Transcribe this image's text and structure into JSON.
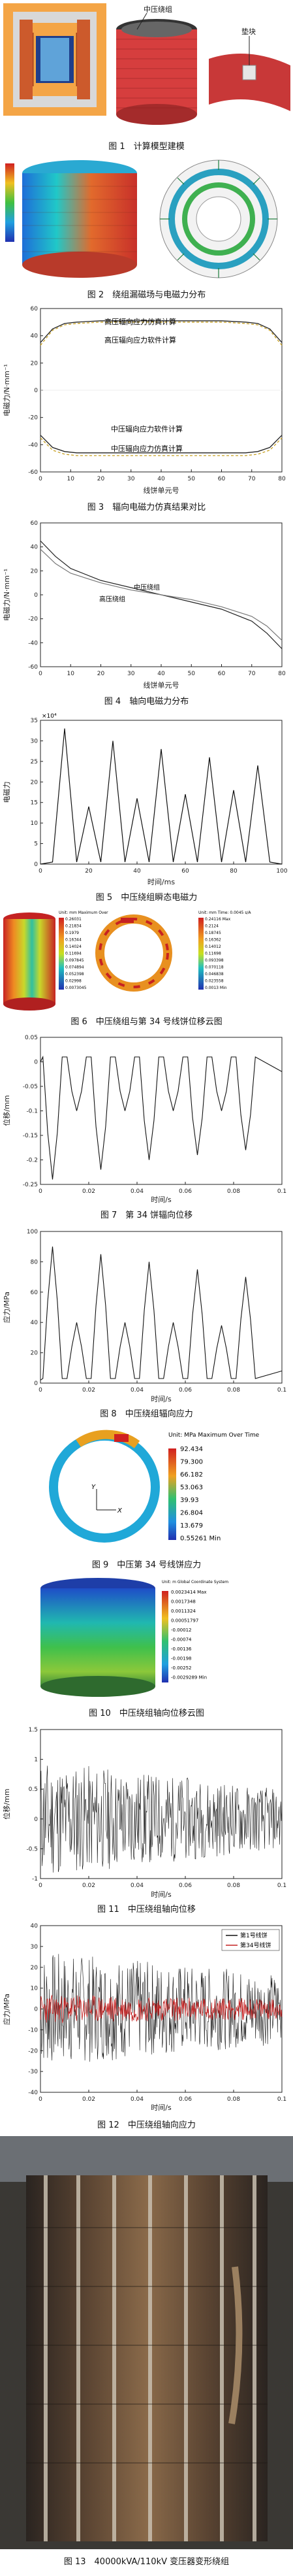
{
  "figures": {
    "fig1": {
      "caption": "图 1　计算模型建模",
      "labels": [
        "中压绕组",
        "垫块"
      ]
    },
    "fig2": {
      "caption": "图 2　绕组漏磁场与电磁力分布"
    },
    "fig3": {
      "caption": "图 3　辐向电磁力仿真结果对比"
    },
    "fig4": {
      "caption": "图 4　轴向电磁力分布"
    },
    "fig5": {
      "caption": "图 5　中压绕组瞬态电磁力"
    },
    "fig6": {
      "caption": "图 6　中压绕组与第 34 号线饼位移云图",
      "left_legend_title": "Unit: mm\nMaximum Over",
      "left_legend_values": [
        "0.26031",
        "0.21834",
        "0.1979",
        "0.16344",
        "0.14024",
        "0.11694",
        "0.097845",
        "0.074894",
        "0.052398",
        "0.02998",
        "0.0073045"
      ],
      "right_legend_title": "Unit: mm\nTime: 0.0045 s/A",
      "right_legend_values": [
        "0.24116 Max",
        "0.2124",
        "0.18745",
        "0.16362",
        "0.14012",
        "0.11698",
        "0.093398",
        "0.070118",
        "0.046838",
        "0.023558",
        "0.0013 Min"
      ]
    },
    "fig7": {
      "caption": "图 7　第 34 饼辐向位移"
    },
    "fig8": {
      "caption": "图 8　中压绕组辐向应力"
    },
    "fig9": {
      "caption": "图 9　中压第 34 号线饼应力",
      "legend_title": "Unit: MPa\nMaximum Over Time",
      "legend_values": [
        "92.434",
        "79.300",
        "66.182",
        "53.063",
        "39.93",
        "26.804",
        "13.679",
        "0.55261 Min"
      ]
    },
    "fig10": {
      "caption": "图 10　中压绕组轴向位移云图",
      "legend_title": "Unit: m\nGlobal Coordinate System",
      "legend_values": [
        "0.0023414 Max",
        "0.0017348",
        "0.0011324",
        "0.00051797",
        "-0.00012",
        "-0.00074",
        "-0.00136",
        "-0.00198",
        "-0.00252",
        "-0.0029289 Min"
      ]
    },
    "fig11": {
      "caption": "图 11　中压绕组轴向位移"
    },
    "fig12": {
      "caption": "图 12　中压绕组轴向应力",
      "legend": [
        "第1号线饼",
        "第34号线饼"
      ]
    },
    "fig13": {
      "caption": "图 13　40000kVA/110kV 变压器变形绕组"
    }
  },
  "chart_data": [
    {
      "id": "fig3",
      "type": "line",
      "xlabel": "线饼单元号",
      "ylabel": "电磁力/N·mm⁻¹",
      "xlim": [
        0,
        80
      ],
      "ylim": [
        -60,
        60
      ],
      "xticks": [
        0,
        10,
        20,
        30,
        40,
        50,
        60,
        70,
        80
      ],
      "yticks": [
        -60,
        -40,
        -20,
        0,
        20,
        40,
        60
      ],
      "annotations": [
        "高压辐向应力仿真计算",
        "高压辐向应力软件计算",
        "中压辐向应力仿真计算",
        "中压辐向应力软件计算"
      ],
      "series": [
        {
          "values_x": [
            0,
            4,
            8,
            12,
            20,
            30,
            40,
            50,
            60,
            68,
            72,
            76,
            80
          ],
          "values": [
            35,
            45,
            49,
            50,
            51,
            51,
            51,
            51,
            51,
            50,
            49,
            45,
            35
          ]
        },
        {
          "values_x": [
            0,
            4,
            8,
            12,
            20,
            30,
            40,
            50,
            60,
            68,
            72,
            76,
            80
          ],
          "values": [
            33,
            44,
            48,
            49,
            50,
            50,
            50,
            50,
            50,
            49,
            48,
            44,
            33
          ]
        },
        {
          "values_x": [
            0,
            4,
            8,
            12,
            20,
            30,
            40,
            50,
            60,
            68,
            72,
            76,
            80
          ],
          "values": [
            -33,
            -42,
            -45,
            -46,
            -46,
            -46,
            -46,
            -46,
            -46,
            -46,
            -45,
            -42,
            -33
          ]
        },
        {
          "values_x": [
            0,
            4,
            8,
            12,
            20,
            30,
            40,
            50,
            60,
            68,
            72,
            76,
            80
          ],
          "values": [
            -35,
            -44,
            -47,
            -48,
            -48,
            -48,
            -48,
            -48,
            -48,
            -48,
            -47,
            -44,
            -35
          ]
        }
      ]
    },
    {
      "id": "fig4",
      "type": "line",
      "xlabel": "线饼单元号",
      "ylabel": "电磁力/N·mm⁻¹",
      "xlim": [
        0,
        80
      ],
      "ylim": [
        -60,
        60
      ],
      "xticks": [
        0,
        10,
        20,
        30,
        40,
        50,
        60,
        70,
        80
      ],
      "yticks": [
        -60,
        -40,
        -20,
        0,
        20,
        40,
        60
      ],
      "series": [
        {
          "name": "中压绕组",
          "values_x": [
            0,
            5,
            10,
            20,
            30,
            40,
            50,
            60,
            70,
            75,
            80
          ],
          "values": [
            45,
            32,
            22,
            12,
            6,
            0,
            -6,
            -12,
            -22,
            -32,
            -45
          ]
        },
        {
          "name": "高压绕组",
          "values_x": [
            0,
            5,
            10,
            20,
            30,
            40,
            50,
            60,
            70,
            75,
            80
          ],
          "values": [
            38,
            26,
            18,
            10,
            4,
            0,
            -4,
            -10,
            -18,
            -26,
            -38
          ]
        }
      ]
    },
    {
      "id": "fig5",
      "type": "line",
      "xlabel": "时间/ms",
      "ylabel": "电磁力",
      "yscale_label": "×10⁴",
      "xlim": [
        0,
        100
      ],
      "ylim": [
        0,
        35
      ],
      "xticks": [
        0,
        20,
        40,
        60,
        80,
        100
      ],
      "yticks": [
        0,
        5,
        10,
        15,
        20,
        25,
        30,
        35
      ],
      "peaks_x": [
        10,
        20,
        30,
        40,
        50,
        60,
        70,
        80,
        90
      ],
      "peaks_y": [
        33,
        14,
        30,
        16,
        28,
        17,
        26,
        18,
        24
      ]
    },
    {
      "id": "fig7",
      "type": "line",
      "xlabel": "时间/s",
      "ylabel": "位移/mm",
      "xlim": [
        0,
        0.1
      ],
      "ylim": [
        -0.25,
        0.05
      ],
      "xticks": [
        0,
        0.02,
        0.04,
        0.06,
        0.08,
        0.1
      ],
      "yticks": [
        0.05,
        0,
        -0.05,
        -0.1,
        -0.15,
        -0.2,
        -0.25
      ]
    },
    {
      "id": "fig8",
      "type": "line",
      "xlabel": "时间/s",
      "ylabel": "应力/MPa",
      "xlim": [
        0,
        0.1
      ],
      "ylim": [
        0,
        100
      ],
      "xticks": [
        0,
        0.02,
        0.04,
        0.06,
        0.08,
        0.1
      ],
      "yticks": [
        0,
        20,
        40,
        60,
        80,
        100
      ]
    },
    {
      "id": "fig11",
      "type": "line",
      "xlabel": "时间/s",
      "ylabel": "位移/mm",
      "xlim": [
        0,
        0.1
      ],
      "ylim": [
        -1,
        1.5
      ],
      "xticks": [
        0,
        0.02,
        0.04,
        0.06,
        0.08,
        0.1
      ],
      "yticks": [
        -1,
        -0.5,
        0,
        0.5,
        1,
        1.5
      ]
    },
    {
      "id": "fig12",
      "type": "line",
      "xlabel": "时间/s",
      "ylabel": "应力/MPa",
      "xlim": [
        0,
        0.1
      ],
      "ylim": [
        -40,
        40
      ],
      "xticks": [
        0,
        0.02,
        0.04,
        0.06,
        0.08,
        0.1
      ],
      "yticks": [
        -40,
        -30,
        -20,
        -10,
        0,
        10,
        20,
        30,
        40
      ],
      "series": [
        {
          "name": "第1号线饼"
        },
        {
          "name": "第34号线饼"
        }
      ]
    }
  ]
}
